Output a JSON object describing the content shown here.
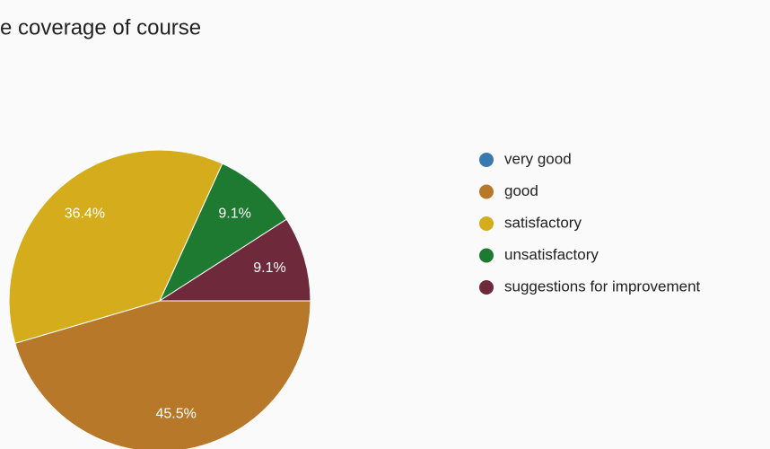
{
  "chart_data": {
    "type": "pie",
    "title": "e coverage of course",
    "categories": [
      "very good",
      "good",
      "satisfactory",
      "unsatisfactory",
      "suggestions for improvement"
    ],
    "values": [
      0,
      45.5,
      36.4,
      9.1,
      9.1
    ],
    "value_labels": [
      null,
      "45.5%",
      "36.4%",
      "9.1%",
      "9.1%"
    ],
    "colors": [
      "#3a78b0",
      "#b8782a",
      "#d4ac1c",
      "#1e7a30",
      "#6e2a3a"
    ],
    "legend": "right"
  }
}
